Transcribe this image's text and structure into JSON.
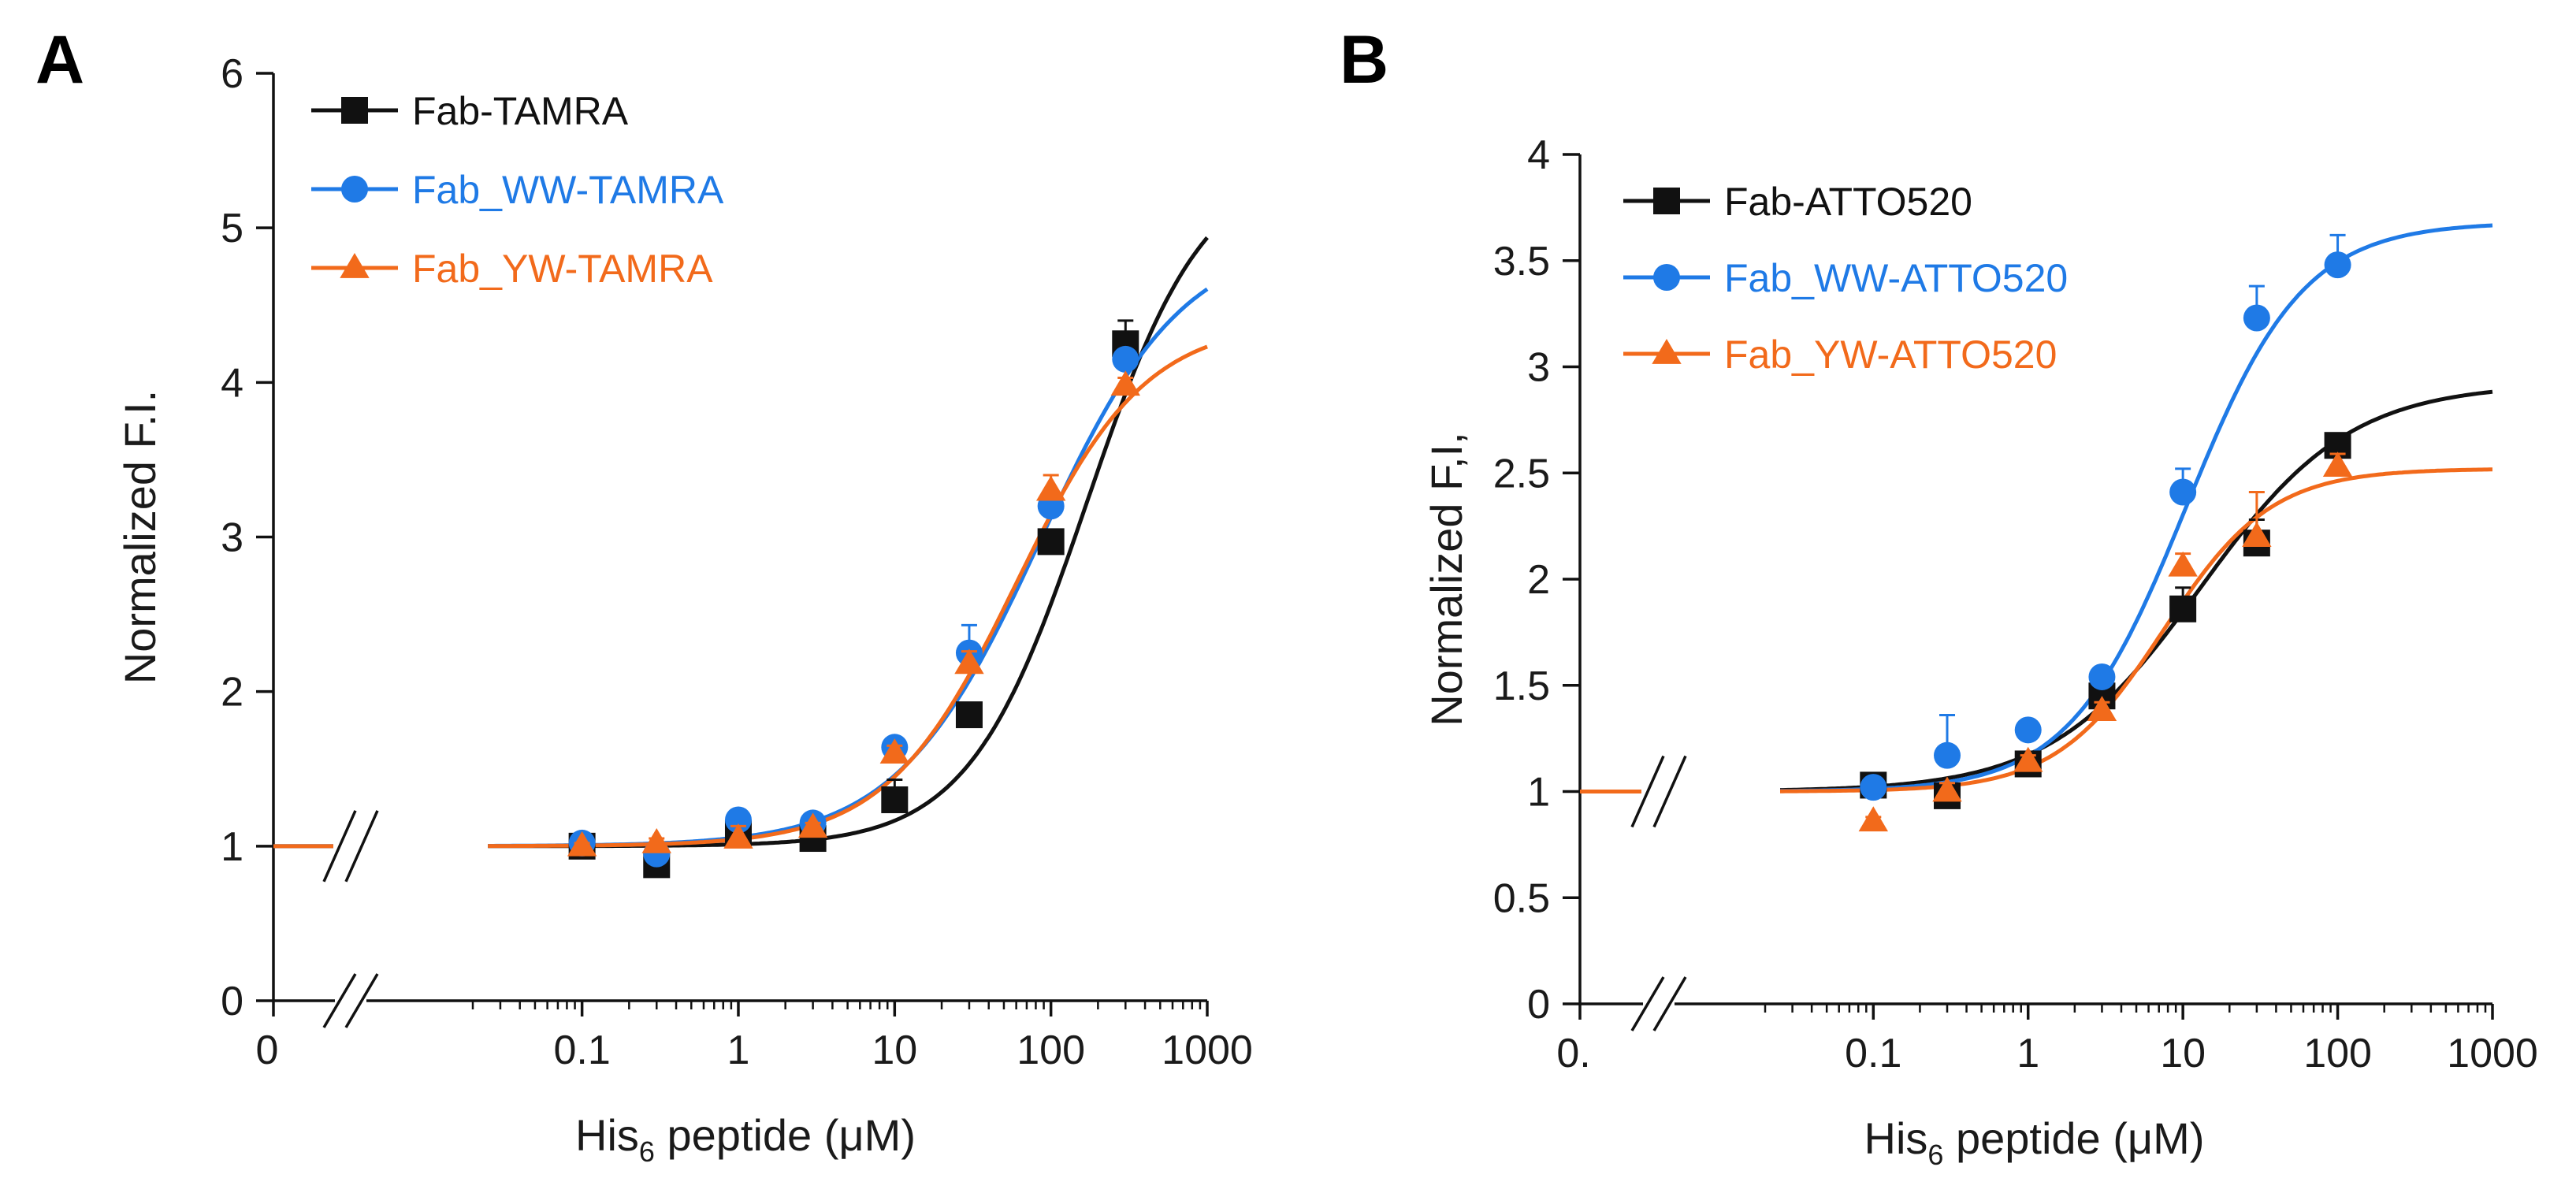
{
  "colors": {
    "black": "#111111",
    "blue": "#1f7ae6",
    "orange": "#f26a1b"
  },
  "chart_data": [
    {
      "type": "scatter",
      "panel": "A",
      "xlabel": "His6 peptide (μM)",
      "xlabel_main": "His",
      "xlabel_sub": "6",
      "xlabel_rest": " peptide (μM)",
      "ylabel": "Normalized F.I.",
      "xscale": "log",
      "xlim": [
        0.02,
        1000
      ],
      "ylim": [
        0,
        6
      ],
      "y_ticks": [
        "0",
        "1",
        "2",
        "3",
        "4",
        "5",
        "6"
      ],
      "x_ticks": [
        "0.1",
        "1",
        "10",
        "100",
        "1000"
      ],
      "x_zero_label": "0",
      "axis_break": true,
      "legend": "top-left",
      "series": [
        {
          "name": "Fab-TAMRA",
          "color": "#111111",
          "marker": "square",
          "x": [
            0.1,
            0.3,
            1,
            3,
            10,
            30,
            100,
            300
          ],
          "y": [
            1.0,
            0.88,
            1.08,
            1.05,
            1.3,
            1.85,
            2.97,
            4.25
          ],
          "err": [
            0.02,
            0.03,
            0.04,
            0.03,
            0.13,
            0.07,
            0.05,
            0.15
          ],
          "fit": {
            "bottom": 1.0,
            "top": 5.45,
            "ec50": 170,
            "hill": 1.15
          }
        },
        {
          "name": "Fab_WW-TAMRA",
          "color": "#1f7ae6",
          "marker": "circle",
          "x": [
            0.1,
            0.3,
            1,
            3,
            10,
            30,
            100,
            300
          ],
          "y": [
            1.02,
            0.95,
            1.17,
            1.15,
            1.64,
            2.25,
            3.2,
            4.15
          ],
          "err": [
            0.02,
            0.03,
            0.05,
            0.04,
            0.05,
            0.18,
            0.05,
            0.05
          ],
          "fit": {
            "bottom": 1.0,
            "top": 4.95,
            "ec50": 85,
            "hill": 0.95
          }
        },
        {
          "name": "Fab_YW-TAMRA",
          "color": "#f26a1b",
          "marker": "triangle",
          "x": [
            0.1,
            0.3,
            1,
            3,
            10,
            30,
            100,
            300
          ],
          "y": [
            1.0,
            1.02,
            1.05,
            1.12,
            1.6,
            2.18,
            3.3,
            3.98
          ],
          "err": [
            0.02,
            0.03,
            0.08,
            0.03,
            0.05,
            0.08,
            0.1,
            0.05
          ],
          "fit": {
            "bottom": 1.0,
            "top": 4.4,
            "ec50": 60,
            "hill": 1.05
          }
        }
      ]
    },
    {
      "type": "scatter",
      "panel": "B",
      "xlabel": "His6 peptide (μM)",
      "xlabel_main": "His",
      "xlabel_sub": "6",
      "xlabel_rest": " peptide (μM)",
      "ylabel": "Normalized F,I,",
      "xscale": "log",
      "xlim": [
        0.02,
        1000
      ],
      "ylim": [
        0,
        4
      ],
      "y_ticks": [
        "0",
        "0.5",
        "1",
        "1.5",
        "2",
        "2.5",
        "3",
        "3.5",
        "4"
      ],
      "x_ticks": [
        "0.1",
        "1",
        "10",
        "100",
        "1000"
      ],
      "x_zero_label": "0.",
      "axis_break": true,
      "legend": "top-left",
      "series": [
        {
          "name": "Fab-ATTO520",
          "color": "#111111",
          "marker": "square",
          "x": [
            0.1,
            0.3,
            1,
            3,
            10,
            30,
            100
          ],
          "y": [
            1.03,
            0.98,
            1.13,
            1.45,
            1.86,
            2.17,
            2.63
          ],
          "err": [
            0.03,
            0.05,
            0.04,
            0.04,
            0.1,
            0.11,
            0.04
          ],
          "fit": {
            "bottom": 1.0,
            "top": 2.92,
            "ec50": 13,
            "hill": 0.9
          }
        },
        {
          "name": "Fab_WW-ATTO520",
          "color": "#1f7ae6",
          "marker": "circle",
          "x": [
            0.1,
            0.3,
            1,
            3,
            10,
            30,
            100
          ],
          "y": [
            1.02,
            1.17,
            1.29,
            1.54,
            2.41,
            3.23,
            3.48
          ],
          "err": [
            0.03,
            0.19,
            0.03,
            0.03,
            0.11,
            0.15,
            0.14
          ],
          "fit": {
            "bottom": 1.0,
            "top": 3.68,
            "ec50": 10.5,
            "hill": 1.15
          }
        },
        {
          "name": "Fab_YW-ATTO520",
          "color": "#f26a1b",
          "marker": "triangle",
          "x": [
            0.1,
            0.3,
            1,
            3,
            10,
            30,
            100
          ],
          "y": [
            0.86,
            1.0,
            1.14,
            1.38,
            2.06,
            2.2,
            2.53
          ],
          "err": [
            0.02,
            0.04,
            0.03,
            0.04,
            0.06,
            0.21,
            0.06
          ],
          "fit": {
            "bottom": 1.0,
            "top": 2.52,
            "ec50": 7.5,
            "hill": 1.25
          }
        }
      ]
    }
  ]
}
